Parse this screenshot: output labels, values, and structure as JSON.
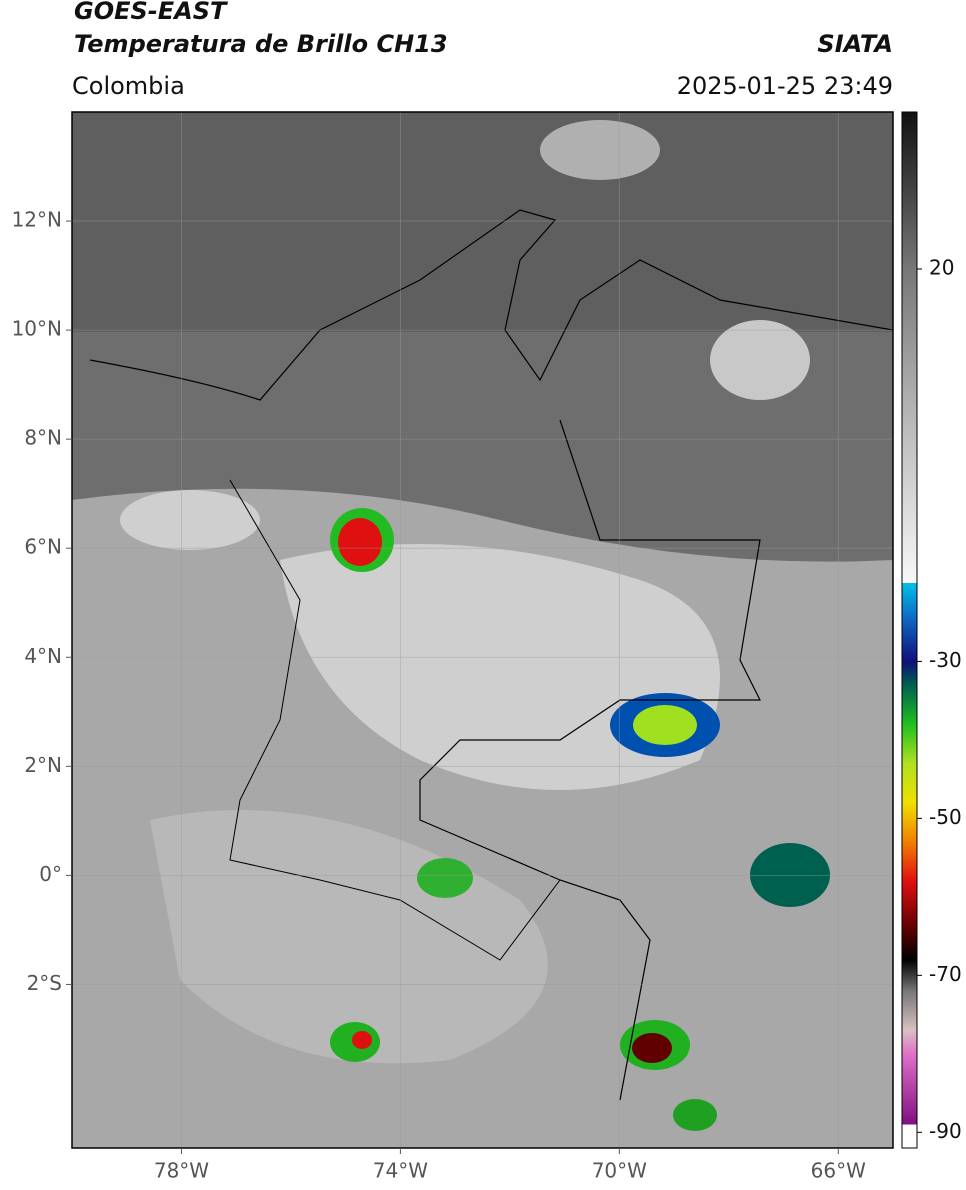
{
  "header": {
    "title": "GOES-EAST",
    "subtitle": "Temperatura de Brillo CH13",
    "source": "SIATA",
    "region": "Colombia",
    "datetime": "2025-01-25 23:49"
  },
  "map": {
    "xlim": [
      -80,
      -65
    ],
    "ylim": [
      -5,
      14
    ],
    "xticks": [
      {
        "value": -78,
        "label": "78°W"
      },
      {
        "value": -74,
        "label": "74°W"
      },
      {
        "value": -70,
        "label": "70°W"
      },
      {
        "value": -66,
        "label": "66°W"
      }
    ],
    "yticks": [
      {
        "value": 12,
        "label": "12°N"
      },
      {
        "value": 10,
        "label": "10°N"
      },
      {
        "value": 8,
        "label": "8°N"
      },
      {
        "value": 6,
        "label": "6°N"
      },
      {
        "value": 4,
        "label": "4°N"
      },
      {
        "value": 2,
        "label": "2°N"
      },
      {
        "value": 0,
        "label": "0°"
      },
      {
        "value": -2,
        "label": "2°S"
      }
    ],
    "grid": true
  },
  "colorbar": {
    "lim": [
      -92,
      40
    ],
    "ticks": [
      20,
      -30,
      -50,
      -70,
      -90
    ],
    "colors": [
      {
        "value": 40,
        "color": "#111111"
      },
      {
        "value": 30,
        "color": "#444444"
      },
      {
        "value": 20,
        "color": "#777777"
      },
      {
        "value": 0,
        "color": "#bbbbbb"
      },
      {
        "value": -20,
        "color": "#f8f8f8"
      },
      {
        "value": -20,
        "color": "#00c0e8"
      },
      {
        "value": -25,
        "color": "#1060c0"
      },
      {
        "value": -30,
        "color": "#10107a"
      },
      {
        "value": -33,
        "color": "#006050"
      },
      {
        "value": -38,
        "color": "#20c020"
      },
      {
        "value": -43,
        "color": "#b0e020"
      },
      {
        "value": -48,
        "color": "#f0e000"
      },
      {
        "value": -53,
        "color": "#f08000"
      },
      {
        "value": -58,
        "color": "#e01010"
      },
      {
        "value": -64,
        "color": "#600000"
      },
      {
        "value": -68,
        "color": "#000000"
      },
      {
        "value": -72,
        "color": "#777777"
      },
      {
        "value": -77,
        "color": "#d8c0c0"
      },
      {
        "value": -80,
        "color": "#e070c8"
      },
      {
        "value": -89,
        "color": "#801080"
      },
      {
        "value": -89,
        "color": "#ffffff"
      },
      {
        "value": -92,
        "color": "#ffffff"
      }
    ]
  }
}
